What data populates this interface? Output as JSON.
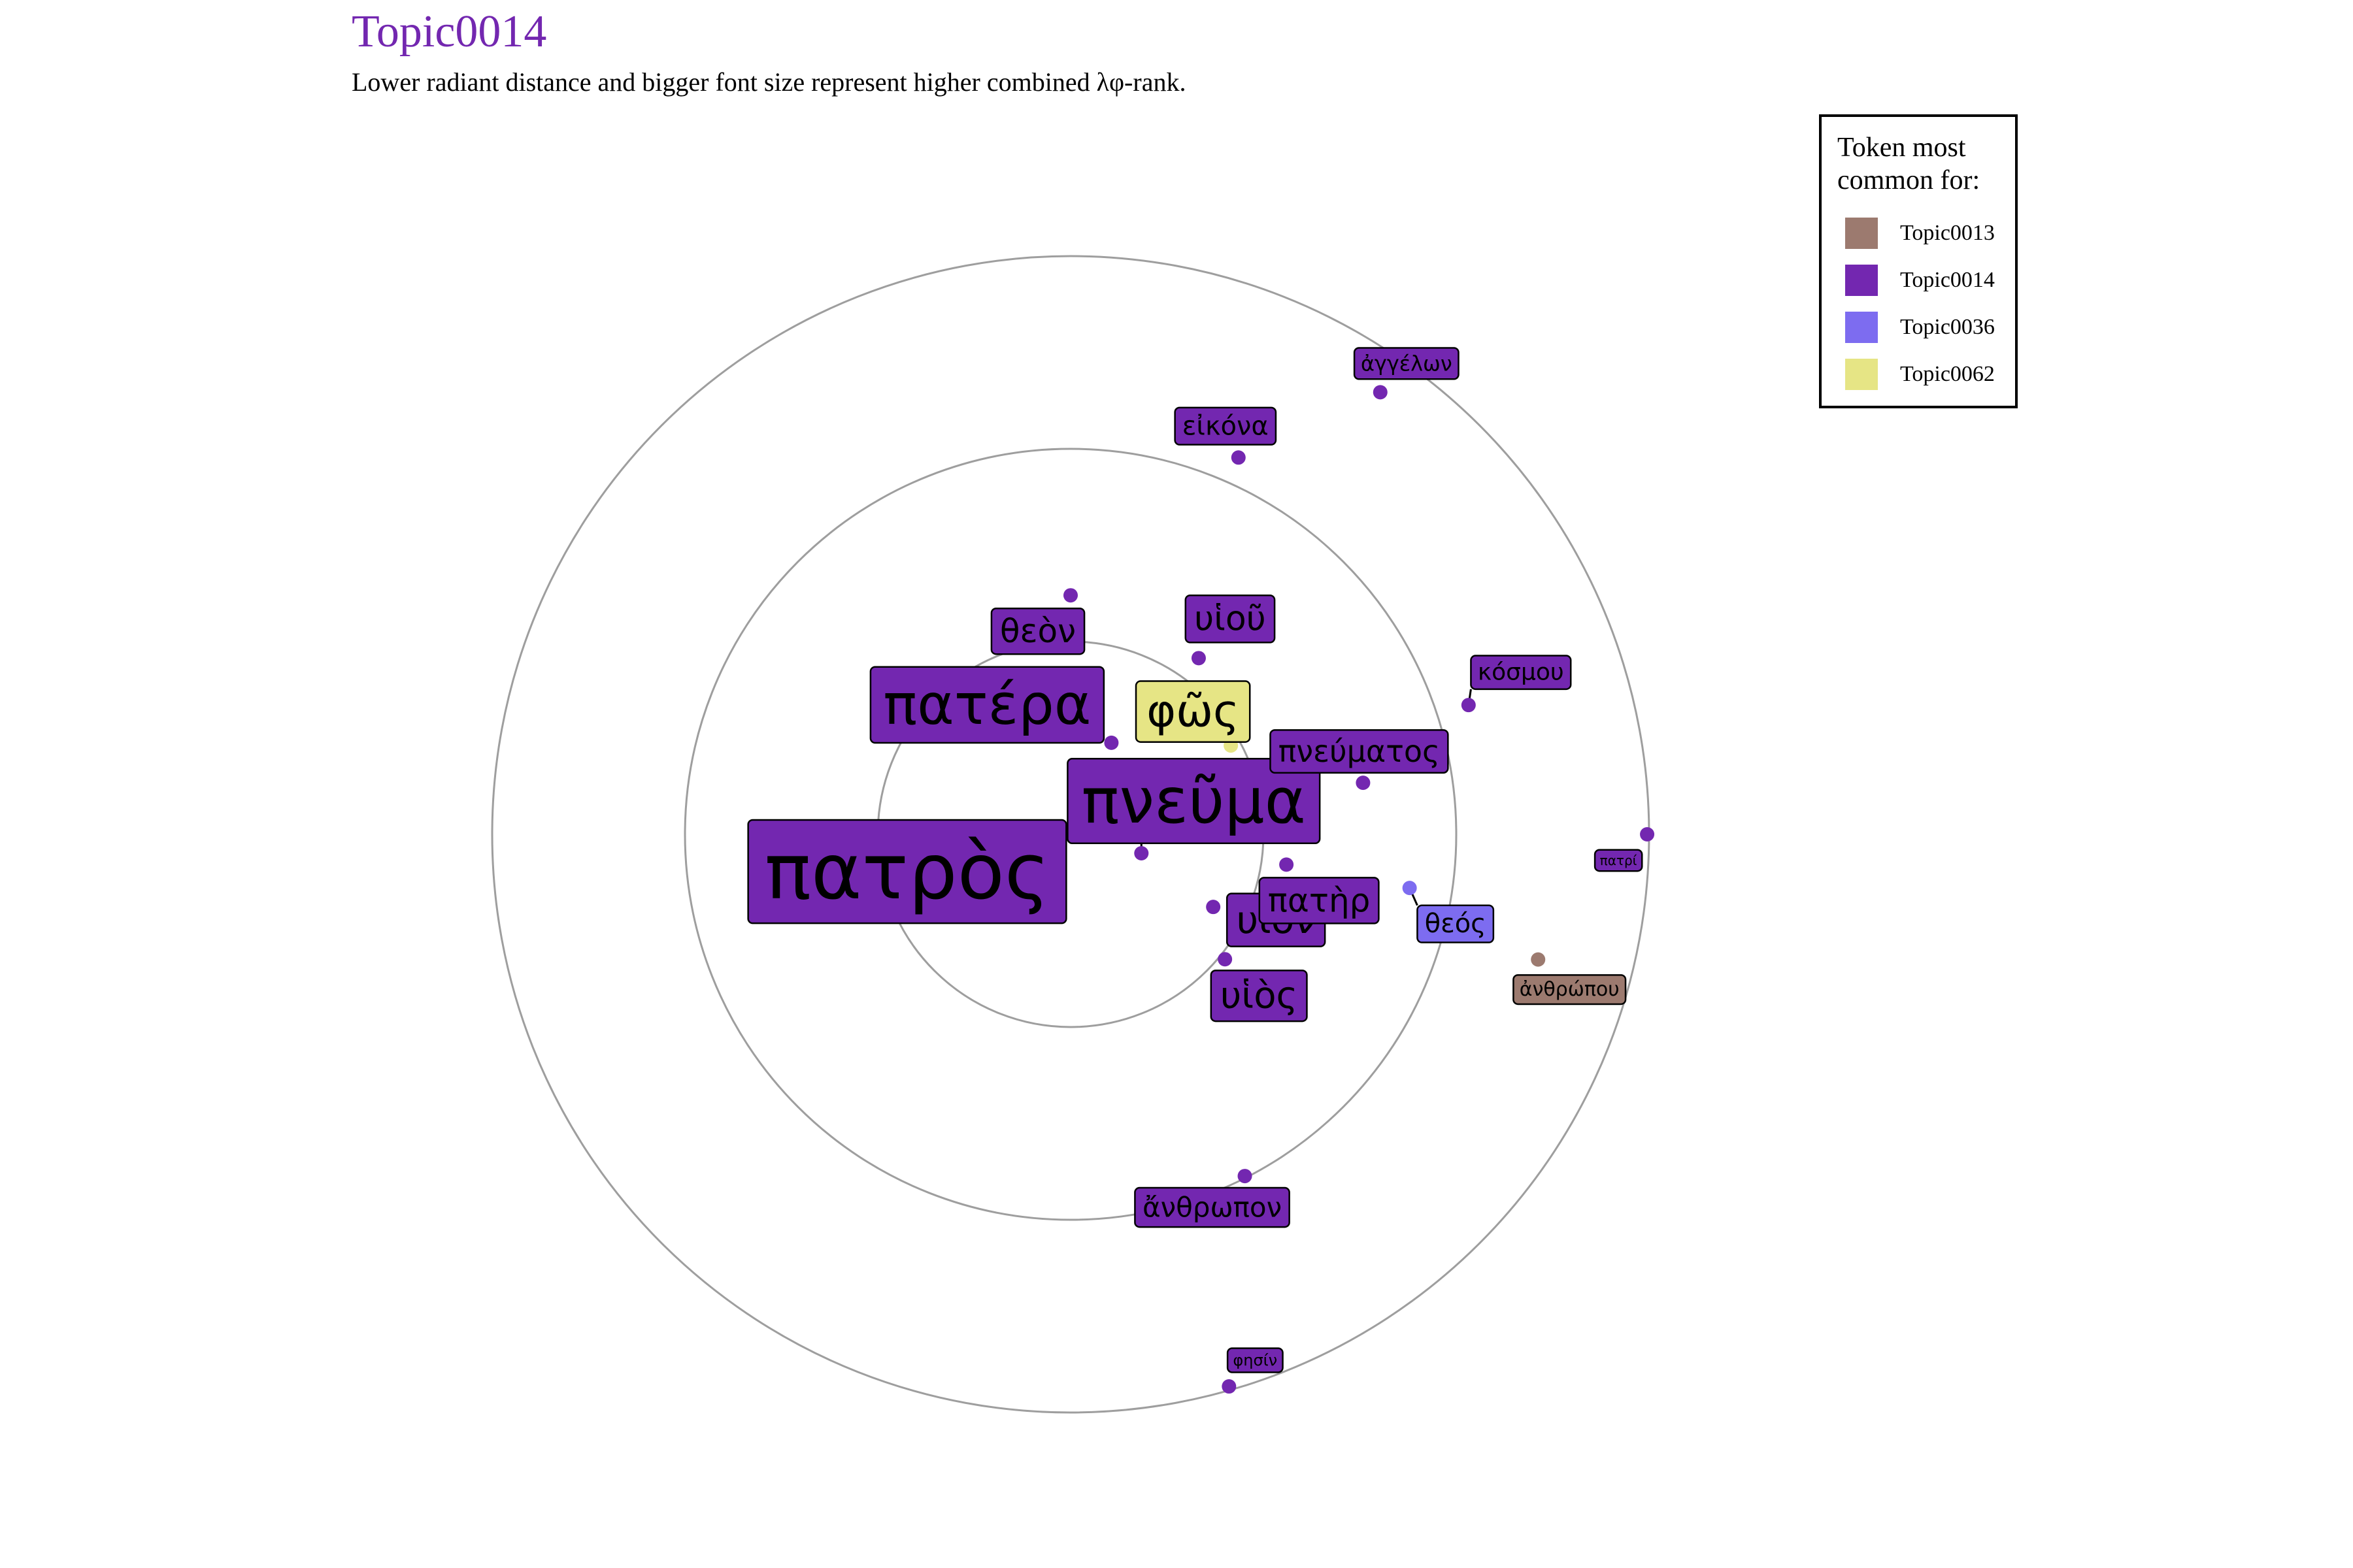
{
  "chart_data": {
    "type": "radial-scatter",
    "title": "Topic0014",
    "subtitle": "Lower radiant distance and bigger font size represent higher combined λφ-rank.",
    "colors": {
      "title": "#7327B0",
      "ring": "#9E9E9E",
      "topics": {
        "Topic0013": "#9C7A6F",
        "Topic0014": "#7327B0",
        "Topic0036": "#7D6CF0",
        "Topic0062": "#E6E585"
      }
    },
    "legend": {
      "title": "Token most\ncommon for:",
      "position": "top-right",
      "items": [
        "Topic0013",
        "Topic0014",
        "Topic0036",
        "Topic0062"
      ]
    },
    "rings": [
      1,
      2,
      3
    ],
    "points": [
      {
        "token": "πατρὸς",
        "topic": "Topic0014",
        "r": 0.01,
        "angle": 90
      },
      {
        "token": "πνεῦμα",
        "topic": "Topic0014",
        "r": 0.38,
        "angle": -15
      },
      {
        "token": "πατέρα",
        "topic": "Topic0014",
        "r": 0.52,
        "angle": 66
      },
      {
        "token": "φῶς",
        "topic": "Topic0062",
        "r": 0.95,
        "angle": 29
      },
      {
        "token": "υἱοῦ",
        "topic": "Topic0014",
        "r": 1.13,
        "angle": 54
      },
      {
        "token": "θεὸν",
        "topic": "Topic0014",
        "r": 1.24,
        "angle": 90
      },
      {
        "token": "υἱὸν",
        "topic": "Topic0014",
        "r": 0.83,
        "angle": -27
      },
      {
        "token": "υἱὸς",
        "topic": "Topic0014",
        "r": 1.03,
        "angle": -39
      },
      {
        "token": "πατὴρ",
        "topic": "Topic0014",
        "r": 1.13,
        "angle": -8
      },
      {
        "token": "πνεύματος",
        "topic": "Topic0014",
        "r": 1.54,
        "angle": 10
      },
      {
        "token": "ἄνθρωπον",
        "topic": "Topic0014",
        "r": 1.99,
        "angle": -63
      },
      {
        "token": "εἰκόνα",
        "topic": "Topic0014",
        "r": 2.14,
        "angle": 66
      },
      {
        "token": "θεός",
        "topic": "Topic0036",
        "r": 1.78,
        "angle": -9
      },
      {
        "token": "κόσμου",
        "topic": "Topic0014",
        "r": 2.17,
        "angle": 18
      },
      {
        "token": "ἀγγέλων",
        "topic": "Topic0014",
        "r": 2.8,
        "angle": 55
      },
      {
        "token": "ἀνθρώπου",
        "topic": "Topic0013",
        "r": 2.51,
        "angle": -15
      },
      {
        "token": "πατρί",
        "topic": "Topic0014",
        "r": 2.99,
        "angle": 0
      },
      {
        "token": "φησίν",
        "topic": "Topic0014",
        "r": 2.98,
        "angle": -74
      }
    ]
  }
}
